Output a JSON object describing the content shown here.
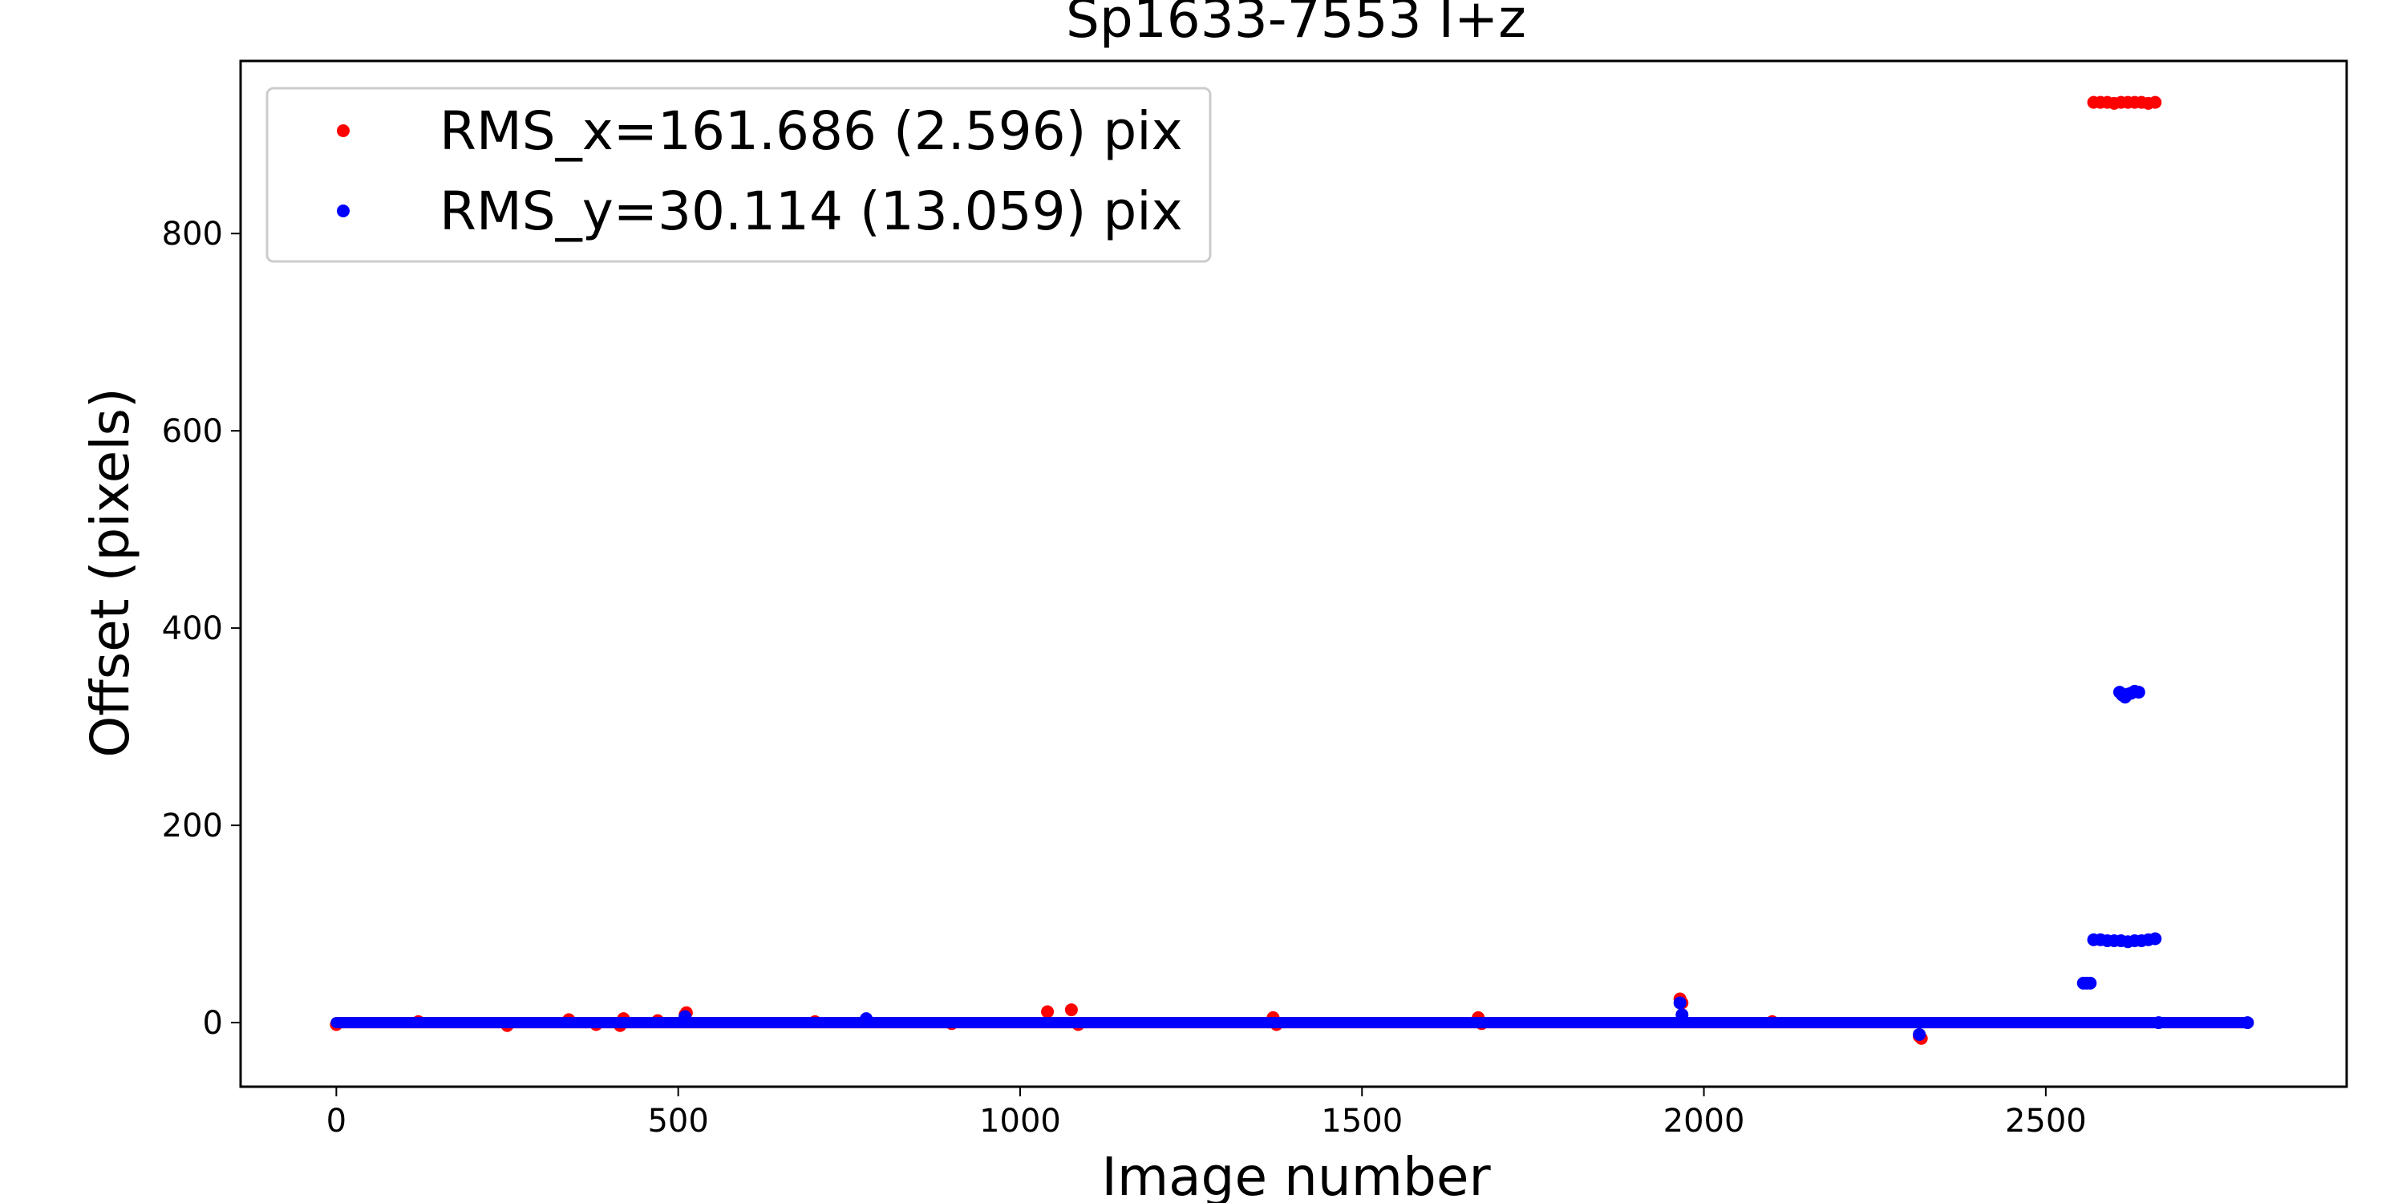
{
  "chart_data": {
    "type": "scatter",
    "title": "Sp1633-7553 I+z",
    "xlabel": "Image number",
    "ylabel": "Offset (pixels)",
    "xlim": [
      -140,
      2940
    ],
    "ylim": [
      -65,
      975
    ],
    "xticks": [
      0,
      500,
      1000,
      1500,
      2000,
      2500
    ],
    "yticks": [
      0,
      200,
      400,
      600,
      800
    ],
    "grid": false,
    "legend_position": "top-left",
    "series": [
      {
        "name": "RMS_x=161.686 (2.596) pix",
        "color": "#ff0000",
        "baseline": {
          "x_start": 0,
          "x_end": 2795,
          "y": 0
        },
        "points": [
          {
            "x": 0,
            "y": -2
          },
          {
            "x": 120,
            "y": 1
          },
          {
            "x": 250,
            "y": -3
          },
          {
            "x": 340,
            "y": 3
          },
          {
            "x": 380,
            "y": -2
          },
          {
            "x": 415,
            "y": -3
          },
          {
            "x": 420,
            "y": 4
          },
          {
            "x": 470,
            "y": 2
          },
          {
            "x": 510,
            "y": 8
          },
          {
            "x": 512,
            "y": 10
          },
          {
            "x": 700,
            "y": 1
          },
          {
            "x": 900,
            "y": -1
          },
          {
            "x": 1040,
            "y": 11
          },
          {
            "x": 1075,
            "y": 13
          },
          {
            "x": 1085,
            "y": -2
          },
          {
            "x": 1370,
            "y": 5
          },
          {
            "x": 1375,
            "y": -2
          },
          {
            "x": 1670,
            "y": 5
          },
          {
            "x": 1675,
            "y": -1
          },
          {
            "x": 1965,
            "y": 24
          },
          {
            "x": 1968,
            "y": 20
          },
          {
            "x": 2100,
            "y": 1
          },
          {
            "x": 2315,
            "y": -14
          },
          {
            "x": 2318,
            "y": -16
          },
          {
            "x": 2570,
            "y": 933
          },
          {
            "x": 2580,
            "y": 933
          },
          {
            "x": 2590,
            "y": 933
          },
          {
            "x": 2600,
            "y": 932
          },
          {
            "x": 2610,
            "y": 933
          },
          {
            "x": 2620,
            "y": 933
          },
          {
            "x": 2630,
            "y": 933
          },
          {
            "x": 2640,
            "y": 933
          },
          {
            "x": 2650,
            "y": 932
          },
          {
            "x": 2660,
            "y": 933
          }
        ]
      },
      {
        "name": "RMS_y=30.114 (13.059) pix",
        "color": "#0000ff",
        "baseline": {
          "x_start": 0,
          "x_end": 2795,
          "y": 0
        },
        "points": [
          {
            "x": 510,
            "y": 6
          },
          {
            "x": 775,
            "y": 4
          },
          {
            "x": 1965,
            "y": 20
          },
          {
            "x": 1968,
            "y": 8
          },
          {
            "x": 2315,
            "y": -12
          },
          {
            "x": 2555,
            "y": 40
          },
          {
            "x": 2560,
            "y": 40
          },
          {
            "x": 2565,
            "y": 40
          },
          {
            "x": 2570,
            "y": 84
          },
          {
            "x": 2580,
            "y": 84
          },
          {
            "x": 2590,
            "y": 83
          },
          {
            "x": 2600,
            "y": 83
          },
          {
            "x": 2608,
            "y": 335
          },
          {
            "x": 2612,
            "y": 332
          },
          {
            "x": 2616,
            "y": 330
          },
          {
            "x": 2620,
            "y": 333
          },
          {
            "x": 2625,
            "y": 334
          },
          {
            "x": 2630,
            "y": 336
          },
          {
            "x": 2636,
            "y": 335
          },
          {
            "x": 2610,
            "y": 83
          },
          {
            "x": 2620,
            "y": 82
          },
          {
            "x": 2630,
            "y": 83
          },
          {
            "x": 2640,
            "y": 83
          },
          {
            "x": 2650,
            "y": 84
          },
          {
            "x": 2660,
            "y": 85
          },
          {
            "x": 2665,
            "y": 0
          },
          {
            "x": 2795,
            "y": 0
          }
        ]
      }
    ]
  }
}
